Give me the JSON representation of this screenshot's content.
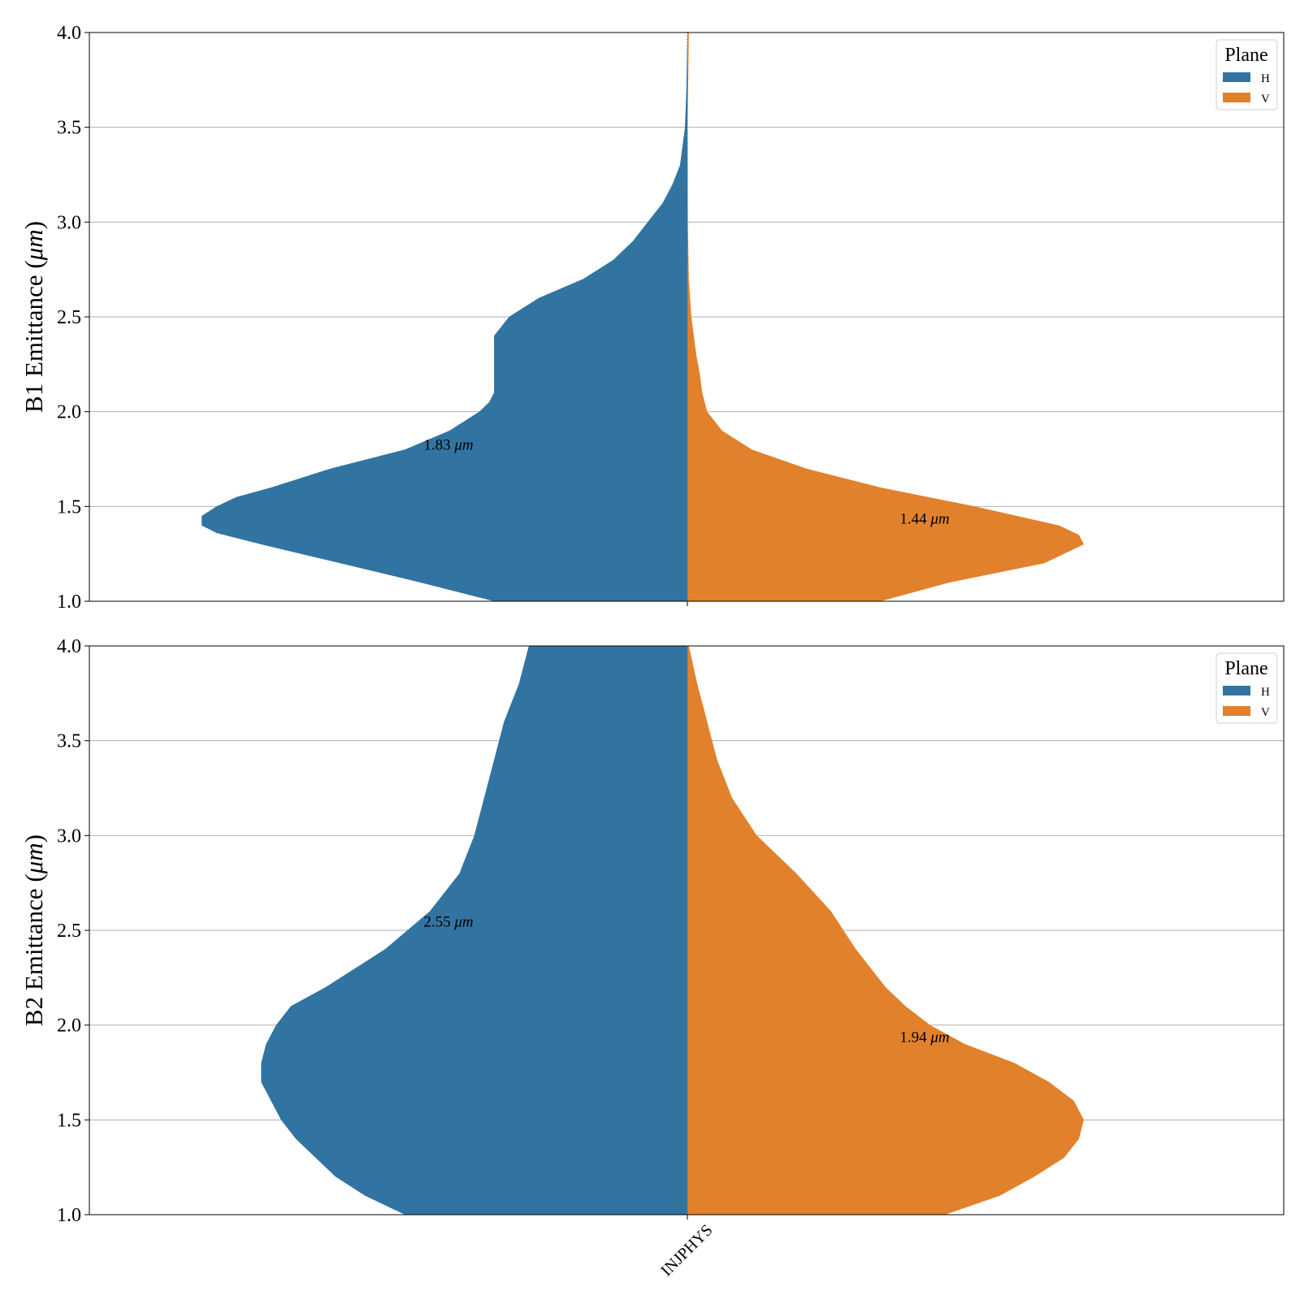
{
  "chart_data": {
    "type": "violin",
    "category": "INJPHYS",
    "colors": {
      "H": "#3274a1",
      "V": "#e1812c"
    },
    "panels": [
      {
        "ylabel_prefix": "B1 Emittance (",
        "ylabel_unit": "μm",
        "ylabel_suffix": ")",
        "ylim": [
          1.0,
          4.0
        ],
        "yticks": [
          "1.0",
          "1.5",
          "2.0",
          "2.5",
          "3.0",
          "3.5",
          "4.0"
        ],
        "legend_title": "Plane",
        "legend_items": [
          "H",
          "V"
        ],
        "annotations": [
          {
            "value": "1.83",
            "unit": "μm",
            "y": 1.83,
            "side": "H"
          },
          {
            "value": "1.44",
            "unit": "μm",
            "y": 1.44,
            "side": "V"
          }
        ],
        "series": [
          {
            "name": "H",
            "density": [
              [
                1.0,
                0.39
              ],
              [
                1.1,
                0.54
              ],
              [
                1.2,
                0.7
              ],
              [
                1.3,
                0.86
              ],
              [
                1.36,
                0.95
              ],
              [
                1.4,
                0.98
              ],
              [
                1.45,
                0.98
              ],
              [
                1.5,
                0.95
              ],
              [
                1.55,
                0.91
              ],
              [
                1.6,
                0.84
              ],
              [
                1.7,
                0.72
              ],
              [
                1.8,
                0.57
              ],
              [
                1.9,
                0.48
              ],
              [
                2.0,
                0.42
              ],
              [
                2.05,
                0.4
              ],
              [
                2.1,
                0.39
              ],
              [
                2.2,
                0.39
              ],
              [
                2.3,
                0.39
              ],
              [
                2.4,
                0.39
              ],
              [
                2.5,
                0.36
              ],
              [
                2.6,
                0.3
              ],
              [
                2.7,
                0.21
              ],
              [
                2.8,
                0.15
              ],
              [
                2.9,
                0.11
              ],
              [
                3.0,
                0.08
              ],
              [
                3.1,
                0.05
              ],
              [
                3.2,
                0.03
              ],
              [
                3.3,
                0.015
              ],
              [
                3.5,
                0.005
              ],
              [
                3.7,
                0.002
              ],
              [
                4.0,
                0.0
              ]
            ]
          },
          {
            "name": "V",
            "density": [
              [
                1.0,
                0.39
              ],
              [
                1.1,
                0.53
              ],
              [
                1.2,
                0.72
              ],
              [
                1.3,
                0.8
              ],
              [
                1.35,
                0.79
              ],
              [
                1.4,
                0.75
              ],
              [
                1.5,
                0.58
              ],
              [
                1.6,
                0.39
              ],
              [
                1.7,
                0.24
              ],
              [
                1.8,
                0.13
              ],
              [
                1.9,
                0.07
              ],
              [
                2.0,
                0.04
              ],
              [
                2.1,
                0.03
              ],
              [
                2.2,
                0.025
              ],
              [
                2.3,
                0.018
              ],
              [
                2.5,
                0.008
              ],
              [
                2.7,
                0.003
              ],
              [
                3.0,
                0.001
              ],
              [
                3.5,
                0.0005
              ],
              [
                3.8,
                0.002
              ],
              [
                4.0,
                0.003
              ]
            ]
          }
        ]
      },
      {
        "ylabel_prefix": "B2 Emittance (",
        "ylabel_unit": "μm",
        "ylabel_suffix": ")",
        "ylim": [
          1.0,
          4.0
        ],
        "yticks": [
          "1.0",
          "1.5",
          "2.0",
          "2.5",
          "3.0",
          "3.5",
          "4.0"
        ],
        "legend_title": "Plane",
        "legend_items": [
          "H",
          "V"
        ],
        "annotations": [
          {
            "value": "2.55",
            "unit": "μm",
            "y": 2.55,
            "side": "H"
          },
          {
            "value": "1.94",
            "unit": "μm",
            "y": 1.94,
            "side": "V"
          }
        ],
        "series": [
          {
            "name": "H",
            "density": [
              [
                1.0,
                0.57
              ],
              [
                1.1,
                0.65
              ],
              [
                1.2,
                0.71
              ],
              [
                1.3,
                0.75
              ],
              [
                1.4,
                0.79
              ],
              [
                1.5,
                0.82
              ],
              [
                1.6,
                0.84
              ],
              [
                1.7,
                0.86
              ],
              [
                1.8,
                0.86
              ],
              [
                1.9,
                0.85
              ],
              [
                2.0,
                0.83
              ],
              [
                2.1,
                0.8
              ],
              [
                2.2,
                0.73
              ],
              [
                2.4,
                0.61
              ],
              [
                2.6,
                0.52
              ],
              [
                2.8,
                0.46
              ],
              [
                3.0,
                0.43
              ],
              [
                3.2,
                0.41
              ],
              [
                3.4,
                0.39
              ],
              [
                3.6,
                0.37
              ],
              [
                3.8,
                0.34
              ],
              [
                4.0,
                0.32
              ]
            ]
          },
          {
            "name": "V",
            "density": [
              [
                1.0,
                0.52
              ],
              [
                1.1,
                0.63
              ],
              [
                1.2,
                0.7
              ],
              [
                1.3,
                0.76
              ],
              [
                1.4,
                0.79
              ],
              [
                1.5,
                0.8
              ],
              [
                1.6,
                0.78
              ],
              [
                1.7,
                0.73
              ],
              [
                1.8,
                0.66
              ],
              [
                1.9,
                0.56
              ],
              [
                2.0,
                0.49
              ],
              [
                2.1,
                0.44
              ],
              [
                2.2,
                0.4
              ],
              [
                2.4,
                0.34
              ],
              [
                2.6,
                0.29
              ],
              [
                2.8,
                0.22
              ],
              [
                3.0,
                0.14
              ],
              [
                3.2,
                0.09
              ],
              [
                3.4,
                0.06
              ],
              [
                3.6,
                0.04
              ],
              [
                3.8,
                0.02
              ],
              [
                4.0,
                0.003
              ]
            ]
          }
        ]
      }
    ]
  }
}
